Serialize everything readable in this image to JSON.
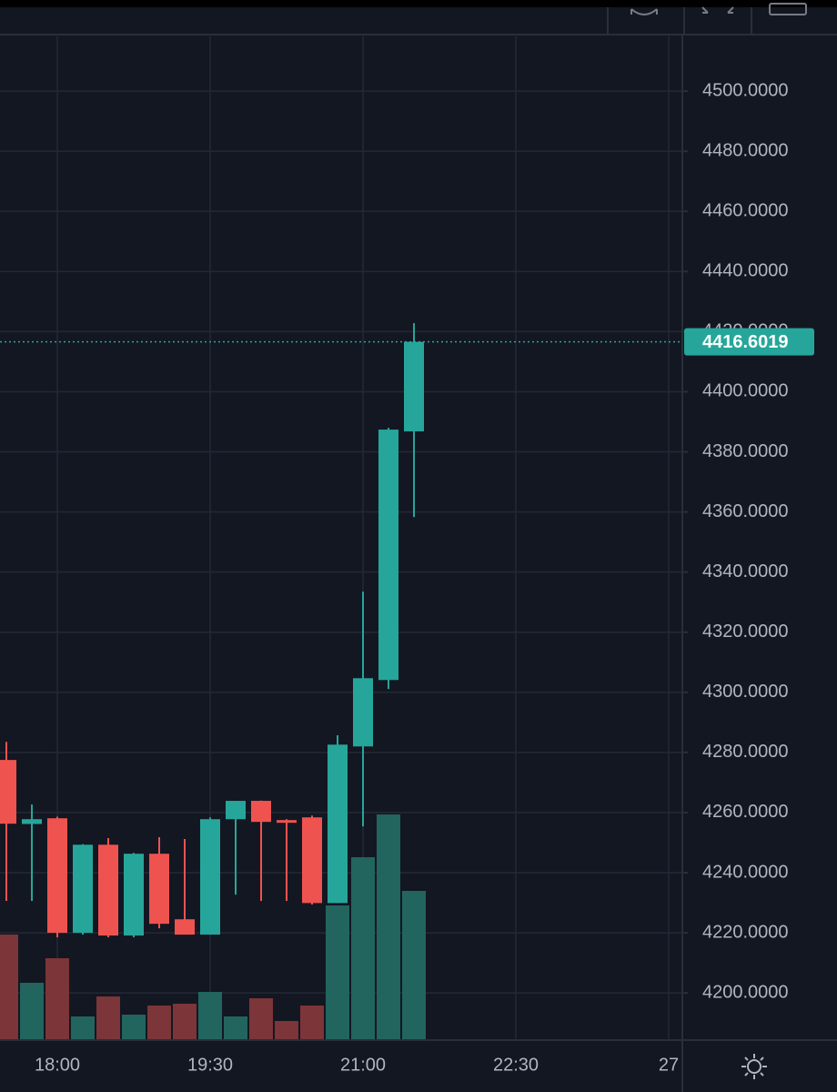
{
  "chart_data": {
    "type": "candlestick",
    "categories": [
      null,
      null,
      "18:00",
      null,
      null,
      null,
      null,
      null,
      "19:30",
      null,
      null,
      null,
      null,
      null,
      "21:00",
      null,
      null,
      null,
      null,
      null,
      "22:30",
      null,
      null,
      null,
      null,
      null,
      "27"
    ],
    "open": [
      4277.5,
      4256.2,
      4258.1,
      4220.0,
      4249.3,
      4219.1,
      4246.3,
      4224.5,
      4219.4,
      4257.8,
      4263.9,
      4257.5,
      4258.4,
      4229.9,
      4282.0,
      4304.1,
      4386.8,
      null,
      null,
      null,
      null,
      null,
      null,
      null,
      null,
      null,
      null
    ],
    "high": [
      4283.5,
      4262.7,
      4258.6,
      4249.5,
      4251.5,
      4246.6,
      4251.8,
      4251.2,
      4258.4,
      4263.9,
      4264.0,
      4257.8,
      4259.0,
      4285.7,
      4333.5,
      4388.0,
      4422.8,
      null,
      null,
      null,
      null,
      null,
      null,
      null,
      null,
      null,
      null
    ],
    "low": [
      4230.6,
      4230.6,
      4218.5,
      4219.4,
      4218.5,
      4218.5,
      4221.5,
      4219.4,
      4219.4,
      4232.7,
      4230.6,
      4230.6,
      4229.4,
      4229.9,
      4255.4,
      4301.1,
      4358.3,
      null,
      null,
      null,
      null,
      null,
      null,
      null,
      null,
      null,
      null
    ],
    "close": [
      4256.3,
      4257.8,
      4220.0,
      4249.3,
      4219.1,
      4246.3,
      4223.0,
      4219.4,
      4257.8,
      4263.9,
      4256.9,
      4256.6,
      4229.9,
      4282.6,
      4304.7,
      4387.4,
      4416.6019,
      null,
      null,
      null,
      null,
      null,
      null,
      null,
      null,
      null,
      null
    ],
    "volume": [
      116,
      63,
      90,
      26,
      48,
      28,
      38,
      40,
      53,
      26,
      46,
      21,
      38,
      148,
      201,
      248,
      164,
      null,
      null,
      null,
      null,
      null,
      null,
      null,
      null,
      null,
      null
    ],
    "volume_lim": [
      0,
      1103
    ],
    "ylim": [
      4184.3,
      4518.2
    ],
    "yticks": [
      {
        "value": 4200,
        "label": "4200.0000"
      },
      {
        "value": 4220,
        "label": "4220.0000"
      },
      {
        "value": 4240,
        "label": "4240.0000"
      },
      {
        "value": 4260,
        "label": "4260.0000"
      },
      {
        "value": 4280,
        "label": "4280.0000"
      },
      {
        "value": 4300,
        "label": "4300.0000"
      },
      {
        "value": 4320,
        "label": "4320.0000"
      },
      {
        "value": 4340,
        "label": "4340.0000"
      },
      {
        "value": 4360,
        "label": "4360.0000"
      },
      {
        "value": 4380,
        "label": "4380.0000"
      },
      {
        "value": 4400,
        "label": "4400.0000"
      },
      {
        "value": 4420,
        "label": "4420.0000"
      },
      {
        "value": 4440,
        "label": "4440.0000"
      },
      {
        "value": 4460,
        "label": "4460.0000"
      },
      {
        "value": 4480,
        "label": "4480.0000"
      },
      {
        "value": 4500,
        "label": "4500.0000"
      }
    ],
    "last_price": 4416.6019,
    "grid": true,
    "up_color": "#26a69a",
    "down_color": "#ef5350",
    "volume_up_color": "#22655e",
    "volume_down_color": "#7c3538"
  }
}
